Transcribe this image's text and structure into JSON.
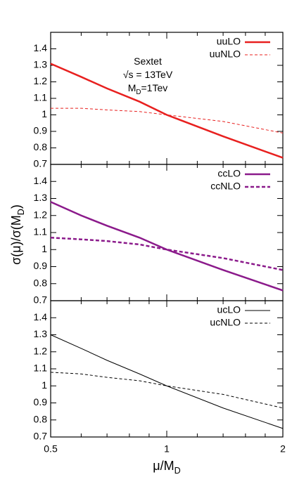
{
  "chart_data": [
    {
      "type": "line",
      "xscale": "log",
      "xlim": [
        0.5,
        2
      ],
      "xticks": [
        0.5,
        1,
        2
      ],
      "xminor_ticks": [
        0.6,
        0.7,
        0.8,
        0.9,
        1.2,
        1.4,
        1.6,
        1.8
      ],
      "xtick_labels": false,
      "ylim": [
        0.7,
        1.5
      ],
      "yticks": [
        0.7,
        0.8,
        0.9,
        1,
        1.1,
        1.2,
        1.3,
        1.4
      ],
      "legend": "top-right",
      "annotations": [
        [
          "Sextet"
        ],
        [
          "√s = 13TeV"
        ],
        [
          "M",
          "D",
          "=1Tev"
        ]
      ],
      "x": [
        0.5,
        0.6,
        0.7,
        0.85,
        1,
        1.4,
        2
      ],
      "series": [
        {
          "name": "uuLO",
          "color": "#e8201f",
          "width": 2.5,
          "dash": "none",
          "values": [
            1.31,
            1.23,
            1.16,
            1.08,
            1.0,
            0.87,
            0.74
          ]
        },
        {
          "name": "uuNLO",
          "color": "#e8201f",
          "width": 1,
          "dash": "4 3",
          "values": [
            1.04,
            1.04,
            1.03,
            1.02,
            1.0,
            0.96,
            0.89
          ]
        }
      ]
    },
    {
      "type": "line",
      "xscale": "log",
      "xlim": [
        0.5,
        2
      ],
      "xticks": [
        0.5,
        1,
        2
      ],
      "xminor_ticks": [
        0.6,
        0.7,
        0.8,
        0.9,
        1.2,
        1.4,
        1.6,
        1.8
      ],
      "xtick_labels": false,
      "ylim": [
        0.7,
        1.5
      ],
      "yticks": [
        0.7,
        0.8,
        0.9,
        1,
        1.1,
        1.2,
        1.3,
        1.4
      ],
      "legend": "top-right",
      "ylabel": [
        "σ(μ)/σ(M",
        "D",
        ")"
      ],
      "x": [
        0.5,
        0.6,
        0.7,
        0.85,
        1,
        1.4,
        2
      ],
      "series": [
        {
          "name": "ccLO",
          "color": "#8b1a8b",
          "width": 2.5,
          "dash": "none",
          "values": [
            1.28,
            1.2,
            1.14,
            1.07,
            1.0,
            0.88,
            0.76
          ]
        },
        {
          "name": "ccNLO",
          "color": "#8b1a8b",
          "width": 2.5,
          "dash": "5 3",
          "values": [
            1.07,
            1.06,
            1.05,
            1.03,
            1.0,
            0.95,
            0.88
          ]
        }
      ]
    },
    {
      "type": "line",
      "xscale": "log",
      "xlim": [
        0.5,
        2
      ],
      "xticks": [
        0.5,
        1,
        2
      ],
      "xminor_ticks": [
        0.6,
        0.7,
        0.8,
        0.9,
        1.2,
        1.4,
        1.6,
        1.8
      ],
      "xtick_labels": true,
      "ylim": [
        0.7,
        1.5
      ],
      "yticks": [
        0.7,
        0.8,
        0.9,
        1,
        1.1,
        1.2,
        1.3,
        1.4
      ],
      "legend": "top-right",
      "xlabel": [
        "μ/M",
        "D"
      ],
      "x": [
        0.5,
        0.6,
        0.7,
        0.85,
        1,
        1.4,
        2
      ],
      "series": [
        {
          "name": "ucLO",
          "color": "#000000",
          "width": 1,
          "dash": "none",
          "values": [
            1.3,
            1.22,
            1.15,
            1.07,
            1.0,
            0.87,
            0.75
          ]
        },
        {
          "name": "ucNLO",
          "color": "#000000",
          "width": 1,
          "dash": "4 3",
          "values": [
            1.08,
            1.07,
            1.05,
            1.03,
            1.0,
            0.95,
            0.87
          ]
        }
      ]
    }
  ]
}
